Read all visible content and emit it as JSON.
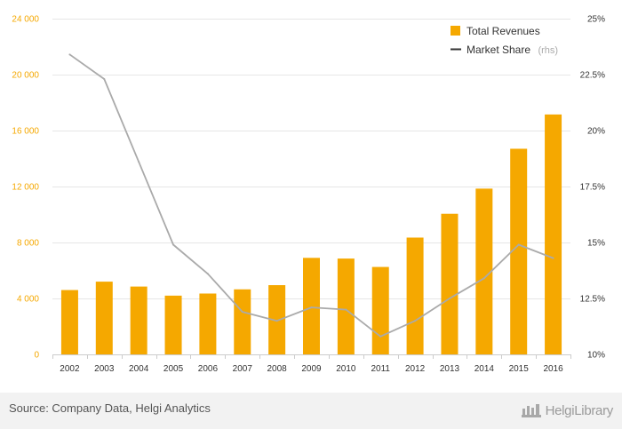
{
  "chart_data": {
    "type": "bar",
    "categories": [
      "2002",
      "2003",
      "2004",
      "2005",
      "2006",
      "2007",
      "2008",
      "2009",
      "2010",
      "2011",
      "2012",
      "2013",
      "2014",
      "2015",
      "2016"
    ],
    "series": [
      {
        "name": "Total Revenues",
        "type": "bar",
        "axis": "left",
        "values": [
          4600,
          5200,
          4850,
          4200,
          4350,
          4650,
          4950,
          6900,
          6850,
          6250,
          8350,
          10050,
          11850,
          14700,
          17150
        ]
      },
      {
        "name": "Market Share",
        "name_suffix": "(rhs)",
        "type": "line",
        "axis": "right",
        "values": [
          23.4,
          22.3,
          18.6,
          14.9,
          13.6,
          11.9,
          11.5,
          12.1,
          12.0,
          10.8,
          11.5,
          12.5,
          13.4,
          14.9,
          14.3
        ]
      }
    ],
    "y_left": {
      "ylim": [
        0,
        24000
      ],
      "ticks": [
        0,
        4000,
        8000,
        12000,
        16000,
        20000,
        24000
      ],
      "tick_labels": [
        "0",
        "4 000",
        "8 000",
        "12 000",
        "16 000",
        "20 000",
        "24 000"
      ]
    },
    "y_right": {
      "ylim": [
        10,
        25
      ],
      "ticks": [
        10,
        12.5,
        15,
        17.5,
        20,
        22.5,
        25
      ],
      "tick_labels": [
        "10%",
        "12.5%",
        "15%",
        "17.5%",
        "20%",
        "22.5%",
        "25%"
      ]
    },
    "grid": true,
    "legend": "top-right",
    "colors": {
      "bar": "#f5a800",
      "line": "#aaaaaa",
      "legend_line": "#333333",
      "grid": "#e6e6e6"
    }
  },
  "footer": {
    "source": "Source: Company Data, Helgi Analytics",
    "brand": "HelgiLibrary"
  }
}
